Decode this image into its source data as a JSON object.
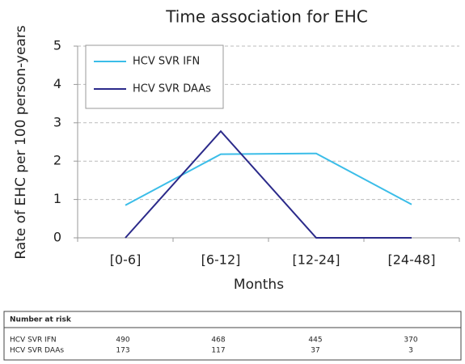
{
  "chart_data": {
    "type": "line",
    "title": "Time association for EHC",
    "x_label": "Months",
    "y_label": "Rate of EHC per 100 person-years",
    "categories": [
      "[0-6]",
      "[6-12]",
      "[12-24]",
      "[24-48]"
    ],
    "series": [
      {
        "name": "HCV SVR IFN",
        "color": "#3bbde8",
        "values": [
          0.85,
          2.18,
          2.2,
          0.87
        ]
      },
      {
        "name": "HCV SVR DAAs",
        "color": "#2b2a8a",
        "values": [
          0,
          2.78,
          0,
          0
        ]
      }
    ],
    "ylim": [
      0,
      5
    ],
    "yticks": [
      0,
      1,
      2,
      3,
      4,
      5
    ],
    "grid": true,
    "legend": "upper left"
  },
  "number_at_risk": {
    "title": "Number at risk",
    "rows": [
      {
        "label": "HCV SVR IFN",
        "values": [
          "490",
          "468",
          "445",
          "370"
        ]
      },
      {
        "label": "HCV SVR DAAs",
        "values": [
          "173",
          "117",
          "37",
          "3"
        ]
      }
    ]
  }
}
